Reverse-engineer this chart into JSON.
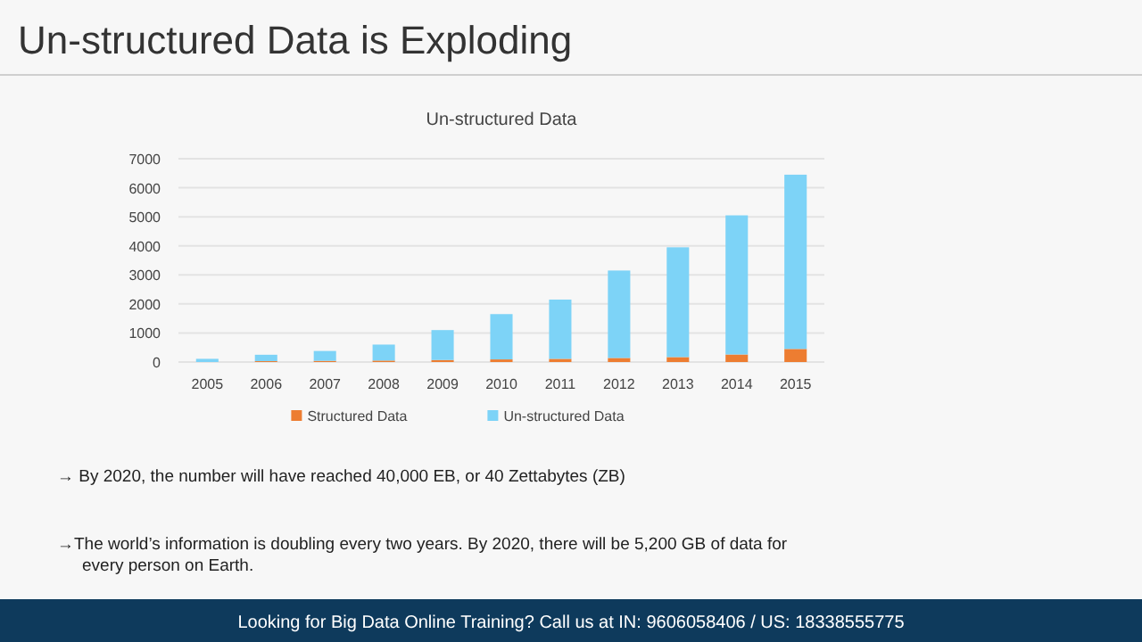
{
  "chart_data": {
    "type": "bar",
    "title": "Un-structured Data is Exploding",
    "subtitle": "Un-structured Data",
    "categories": [
      "2005",
      "2006",
      "2007",
      "2008",
      "2009",
      "2010",
      "2011",
      "2012",
      "2013",
      "2014",
      "2015"
    ],
    "series": [
      {
        "name": "Structured Data",
        "color": "#ed7d31",
        "values": [
          null,
          30,
          40,
          50,
          70,
          90,
          110,
          140,
          170,
          260,
          450
        ]
      },
      {
        "name": "Un-structured Data",
        "color": "#7dd3f7",
        "values": [
          110,
          220,
          340,
          550,
          1030,
          1560,
          2040,
          3010,
          3780,
          4790,
          6000
        ]
      }
    ],
    "stacked": true,
    "ylim": [
      0,
      7000
    ],
    "yticks": [
      0,
      1000,
      2000,
      3000,
      4000,
      5000,
      6000,
      7000
    ],
    "grid": "y",
    "legend": "bottom",
    "annotations": [
      "→ By 2020, the number will have reached  40,000 EB, or 40 Zettabytes (ZB)",
      "→The world’s information is doubling every two years.  By 2020, there will be 5,200 GB of data for every person on Earth.",
      "Looking for Big Data Online Training? Call us at IN: 9606058406 / US: 18338555775"
    ]
  }
}
